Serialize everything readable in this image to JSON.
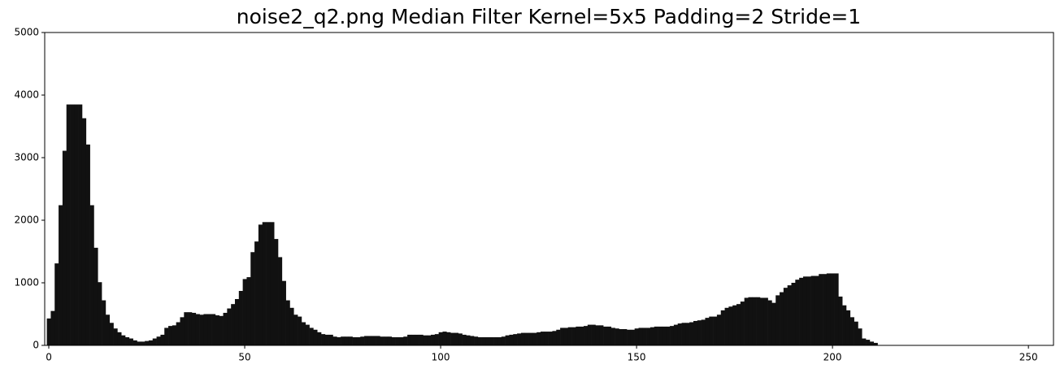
{
  "chart_data": {
    "type": "histogram",
    "title": "noise2_q2.png Median Filter Kernel=5x5 Padding=2 Stride=1",
    "color": "#111111",
    "xlim": [
      -1.04,
      256.4
    ],
    "xticks": [
      0,
      50,
      100,
      150,
      200,
      250
    ],
    "ylim": [
      0,
      5000
    ],
    "yticks": [
      0,
      1000,
      2000,
      3000,
      4000,
      5000
    ],
    "bins": [
      -0.5,
      0.5,
      1.5,
      2.5,
      3.5,
      4.5,
      5.5,
      6.5,
      7.5,
      8.5,
      9.5,
      10.5,
      11.5,
      12.5,
      13.5,
      14.5,
      15.5,
      16.5,
      17.5,
      18.5,
      19.5,
      20.5,
      21.5,
      22.5,
      23.5,
      24.5,
      25.5,
      26.5,
      27.5,
      28.5,
      29.5,
      30.5,
      31.5,
      32.5,
      33.5,
      34.5,
      35.5,
      36.5,
      37.5,
      38.5,
      39.5,
      40.5,
      41.5,
      42.5,
      43.5,
      44.5,
      45.5,
      46.5,
      47.5,
      48.5,
      49.5,
      50.5,
      51.5,
      52.5,
      53.5,
      54.5,
      55.5,
      56.5,
      57.5,
      58.5,
      59.5,
      60.5,
      61.5,
      62.5,
      63.5,
      64.5,
      65.5,
      66.5,
      67.5,
      68.5,
      69.5,
      70.5,
      71.5,
      72.5,
      73.5,
      74.5,
      75.5,
      76.5,
      77.5,
      78.5,
      79.5,
      80.5,
      81.5,
      82.5,
      83.5,
      84.5,
      85.5,
      86.5,
      87.5,
      88.5,
      89.5,
      90.5,
      91.5,
      92.5,
      93.5,
      94.5,
      95.5,
      96.5,
      97.5,
      98.5,
      99.5,
      100.5,
      101.5,
      102.5,
      103.5,
      104.5,
      105.5,
      106.5,
      107.5,
      108.5,
      109.5,
      110.5,
      111.5,
      112.5,
      113.5,
      114.5,
      115.5,
      116.5,
      117.5,
      118.5,
      119.5,
      120.5,
      121.5,
      122.5,
      123.5,
      124.5,
      125.5,
      126.5,
      127.5,
      128.5,
      129.5,
      130.5,
      131.5,
      132.5,
      133.5,
      134.5,
      135.5,
      136.5,
      137.5,
      138.5,
      139.5,
      140.5,
      141.5,
      142.5,
      143.5,
      144.5,
      145.5,
      146.5,
      147.5,
      148.5,
      149.5,
      150.5,
      151.5,
      152.5,
      153.5,
      154.5,
      155.5,
      156.5,
      157.5,
      158.5,
      159.5,
      160.5,
      161.5,
      162.5,
      163.5,
      164.5,
      165.5,
      166.5,
      167.5,
      168.5,
      169.5,
      170.5,
      171.5,
      172.5,
      173.5,
      174.5,
      175.5,
      176.5,
      177.5,
      178.5,
      179.5,
      180.5,
      181.5,
      182.5,
      183.5,
      184.5,
      185.5,
      186.5,
      187.5,
      188.5,
      189.5,
      190.5,
      191.5,
      192.5,
      193.5,
      194.5,
      195.5,
      196.5,
      197.5,
      198.5,
      199.5,
      200.5,
      201.5,
      202.5,
      203.5,
      204.5,
      205.5,
      206.5,
      207.5,
      208.5,
      209.5,
      210.5,
      211.5,
      212.5,
      213.5,
      214.5,
      215.5,
      216.5,
      217.5,
      218.5,
      219.5,
      220.5,
      221.5,
      222.5,
      223.5,
      224.5,
      225.5,
      226.5,
      227.5,
      228.5,
      229.5,
      230.5,
      231.5,
      232.5,
      233.5,
      234.5,
      235.5,
      236.5,
      237.5,
      238.5,
      239.5,
      240.5,
      241.5,
      242.5,
      243.5,
      244.5,
      245.5,
      246.5,
      247.5,
      248.5,
      249.5,
      250.5,
      251.5,
      252.5,
      253.5,
      254.5,
      255.5
    ],
    "values": [
      430,
      550,
      1310,
      2240,
      3110,
      3850,
      3850,
      3850,
      3850,
      3630,
      3210,
      2240,
      1560,
      1010,
      720,
      490,
      360,
      270,
      210,
      160,
      130,
      110,
      80,
      60,
      60,
      70,
      80,
      110,
      140,
      170,
      280,
      310,
      320,
      370,
      450,
      530,
      530,
      520,
      500,
      490,
      500,
      500,
      500,
      480,
      470,
      520,
      590,
      660,
      740,
      870,
      1060,
      1090,
      1490,
      1660,
      1930,
      1970,
      1970,
      1970,
      1700,
      1410,
      1030,
      720,
      600,
      490,
      460,
      370,
      330,
      280,
      250,
      210,
      180,
      170,
      170,
      140,
      130,
      140,
      140,
      140,
      130,
      130,
      140,
      150,
      150,
      150,
      150,
      140,
      140,
      140,
      130,
      130,
      130,
      140,
      170,
      170,
      170,
      170,
      160,
      160,
      170,
      180,
      210,
      220,
      210,
      200,
      200,
      190,
      170,
      160,
      150,
      140,
      130,
      130,
      130,
      130,
      130,
      130,
      140,
      160,
      170,
      180,
      190,
      200,
      200,
      200,
      200,
      210,
      220,
      220,
      220,
      230,
      250,
      280,
      280,
      290,
      290,
      300,
      300,
      310,
      330,
      330,
      320,
      320,
      300,
      300,
      280,
      270,
      260,
      260,
      250,
      250,
      270,
      280,
      280,
      280,
      290,
      300,
      300,
      300,
      300,
      310,
      330,
      350,
      360,
      360,
      370,
      390,
      400,
      410,
      440,
      460,
      460,
      490,
      560,
      600,
      620,
      640,
      660,
      700,
      760,
      770,
      770,
      770,
      760,
      760,
      720,
      680,
      800,
      850,
      920,
      960,
      1000,
      1050,
      1080,
      1100,
      1100,
      1110,
      1110,
      1140,
      1140,
      1150,
      1150,
      1150,
      780,
      640,
      560,
      450,
      380,
      270,
      110,
      90,
      60,
      40,
      0,
      0,
      0,
      0,
      0,
      0,
      0,
      0,
      0,
      0,
      0,
      0,
      0,
      0,
      0,
      0,
      0,
      0,
      0,
      0,
      0,
      0,
      0,
      0,
      0,
      0,
      0,
      0,
      0,
      0,
      0,
      0,
      0,
      0,
      0,
      0,
      0,
      0,
      0,
      0,
      0,
      0,
      0,
      0
    ]
  }
}
